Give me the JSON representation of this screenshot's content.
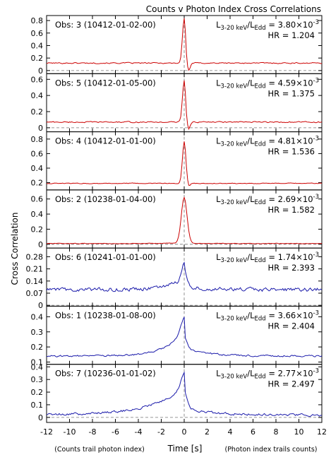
{
  "chart_data": {
    "type": "line",
    "title": "Counts v Photon Index Cross Correlations",
    "ylabel": "Cross Correlation",
    "xlabel": "Time [s]",
    "xlabel_left_note": "(Counts trail photon index)",
    "xlabel_right_note": "(Photon index trails counts)",
    "xlim": [
      -12,
      12
    ],
    "xticks": [
      -12,
      -10,
      -8,
      -6,
      -4,
      -2,
      0,
      2,
      4,
      6,
      8,
      10,
      12
    ],
    "grid": false,
    "zero_line": "dashed",
    "panels": [
      {
        "label": "Obs: 3 (10412-01-02-00)",
        "lum_value": "3.80×10",
        "lum_exp": "-3",
        "hr": "HR = 1.204",
        "color": "#cc0000",
        "ylim": [
          -0.05,
          0.88
        ],
        "yticks": [
          0,
          0.2,
          0.4,
          0.6,
          0.8
        ],
        "yticklabels": [
          "0",
          "0.2",
          "0.4",
          "0.6",
          "0.8"
        ],
        "shape": {
          "baseline": 0.12,
          "peak": 0.72,
          "width_left": 0.15,
          "width_right": 0.12,
          "dip": -0.12,
          "dip_pos": 0.4,
          "wing": 0,
          "wing_decay": 2,
          "noise": 0.01
        }
      },
      {
        "label": "Obs: 5 (10412-01-05-00)",
        "lum_value": "4.59×10",
        "lum_exp": "-3",
        "hr": "HR = 1.375",
        "color": "#cc0000",
        "ylim": [
          -0.05,
          0.67
        ],
        "yticks": [
          0,
          0.2,
          0.4,
          0.6
        ],
        "yticklabels": [
          "0",
          "0.2",
          "0.4",
          "0.6"
        ],
        "shape": {
          "baseline": 0.07,
          "peak": 0.52,
          "width_left": 0.15,
          "width_right": 0.12,
          "dip": -0.08,
          "dip_pos": 0.4,
          "wing": 0,
          "wing_decay": 2,
          "noise": 0.008
        }
      },
      {
        "label": "Obs: 4 (10412-01-01-00)",
        "lum_value": "4.81×10",
        "lum_exp": "-3",
        "hr": "HR = 1.536",
        "color": "#cc0000",
        "ylim": [
          0.1,
          0.9
        ],
        "yticks": [
          0.2,
          0.4,
          0.6,
          0.8
        ],
        "yticklabels": [
          "0.2",
          "0.4",
          "0.6",
          "0.8"
        ],
        "shape": {
          "baseline": 0.19,
          "peak": 0.58,
          "width_left": 0.15,
          "width_right": 0.15,
          "dip": -0.04,
          "dip_pos": 0.4,
          "wing": 0,
          "wing_decay": 2,
          "noise": 0.006
        }
      },
      {
        "label": "Obs: 2 (10238-01-04-00)",
        "lum_value": "2.69×10",
        "lum_exp": "-3",
        "hr": "HR = 1.582",
        "color": "#cc0000",
        "ylim": [
          -0.05,
          0.72
        ],
        "yticks": [
          0,
          0.2,
          0.4,
          0.6
        ],
        "yticklabels": [
          "0",
          "0.2",
          "0.4",
          "0.6"
        ],
        "shape": {
          "baseline": 0.01,
          "peak": 0.6,
          "width_left": 0.25,
          "width_right": 0.25,
          "dip": 0,
          "dip_pos": 0.5,
          "wing": 0.01,
          "wing_decay": 1.5,
          "noise": 0.004
        }
      },
      {
        "label": "Obs: 6 (10241-01-01-00)",
        "lum_value": "1.74×10",
        "lum_exp": "-3",
        "hr": "HR = 2.393",
        "color": "#1a1aaa",
        "ylim": [
          -0.005,
          0.33
        ],
        "yticks": [
          0,
          0.07,
          0.14,
          0.21,
          0.28
        ],
        "yticklabels": [
          "0",
          "0.07",
          "0.14",
          "0.21",
          "0.28"
        ],
        "shape": {
          "baseline": 0.09,
          "peak": 0.1,
          "width_left": 0.25,
          "width_right": 0.22,
          "dip": 0,
          "dip_pos": 0.5,
          "wing": 0.06,
          "wing_decay": 1.5,
          "noise": 0.012
        }
      },
      {
        "label": "Obs: 1 (10238-01-08-00)",
        "lum_value": "3.66×10",
        "lum_exp": "-3",
        "hr": "HR = 2.404",
        "color": "#1a1aaa",
        "ylim": [
          0.085,
          0.47
        ],
        "yticks": [
          0.1,
          0.2,
          0.3,
          0.4
        ],
        "yticklabels": [
          "0.1",
          "0.2",
          "0.3",
          "0.4"
        ],
        "shape": {
          "baseline": 0.14,
          "peak": 0.08,
          "width_left": 0.3,
          "width_right": 0.25,
          "dip": 0,
          "dip_pos": 0.5,
          "wing": 0.18,
          "wing_decay": 1.5,
          "noise": 0.006
        }
      },
      {
        "label": "Obs: 7 (10236-01-01-02)",
        "lum_value": "2.77×10",
        "lum_exp": "-3",
        "hr": "HR = 2.497",
        "color": "#1a1aaa",
        "ylim": [
          -0.04,
          0.42
        ],
        "yticks": [
          0,
          0.1,
          0.2,
          0.3,
          0.4
        ],
        "yticklabels": [
          "0",
          "0.1",
          "0.2",
          "0.3",
          "0.4"
        ],
        "shape": {
          "baseline": 0.02,
          "peak": 0.12,
          "width_left": 0.3,
          "width_right": 0.25,
          "dip": 0,
          "dip_pos": 0.5,
          "wing": 0.22,
          "wing_decay": 2.8,
          "noise": 0.01
        }
      }
    ]
  }
}
